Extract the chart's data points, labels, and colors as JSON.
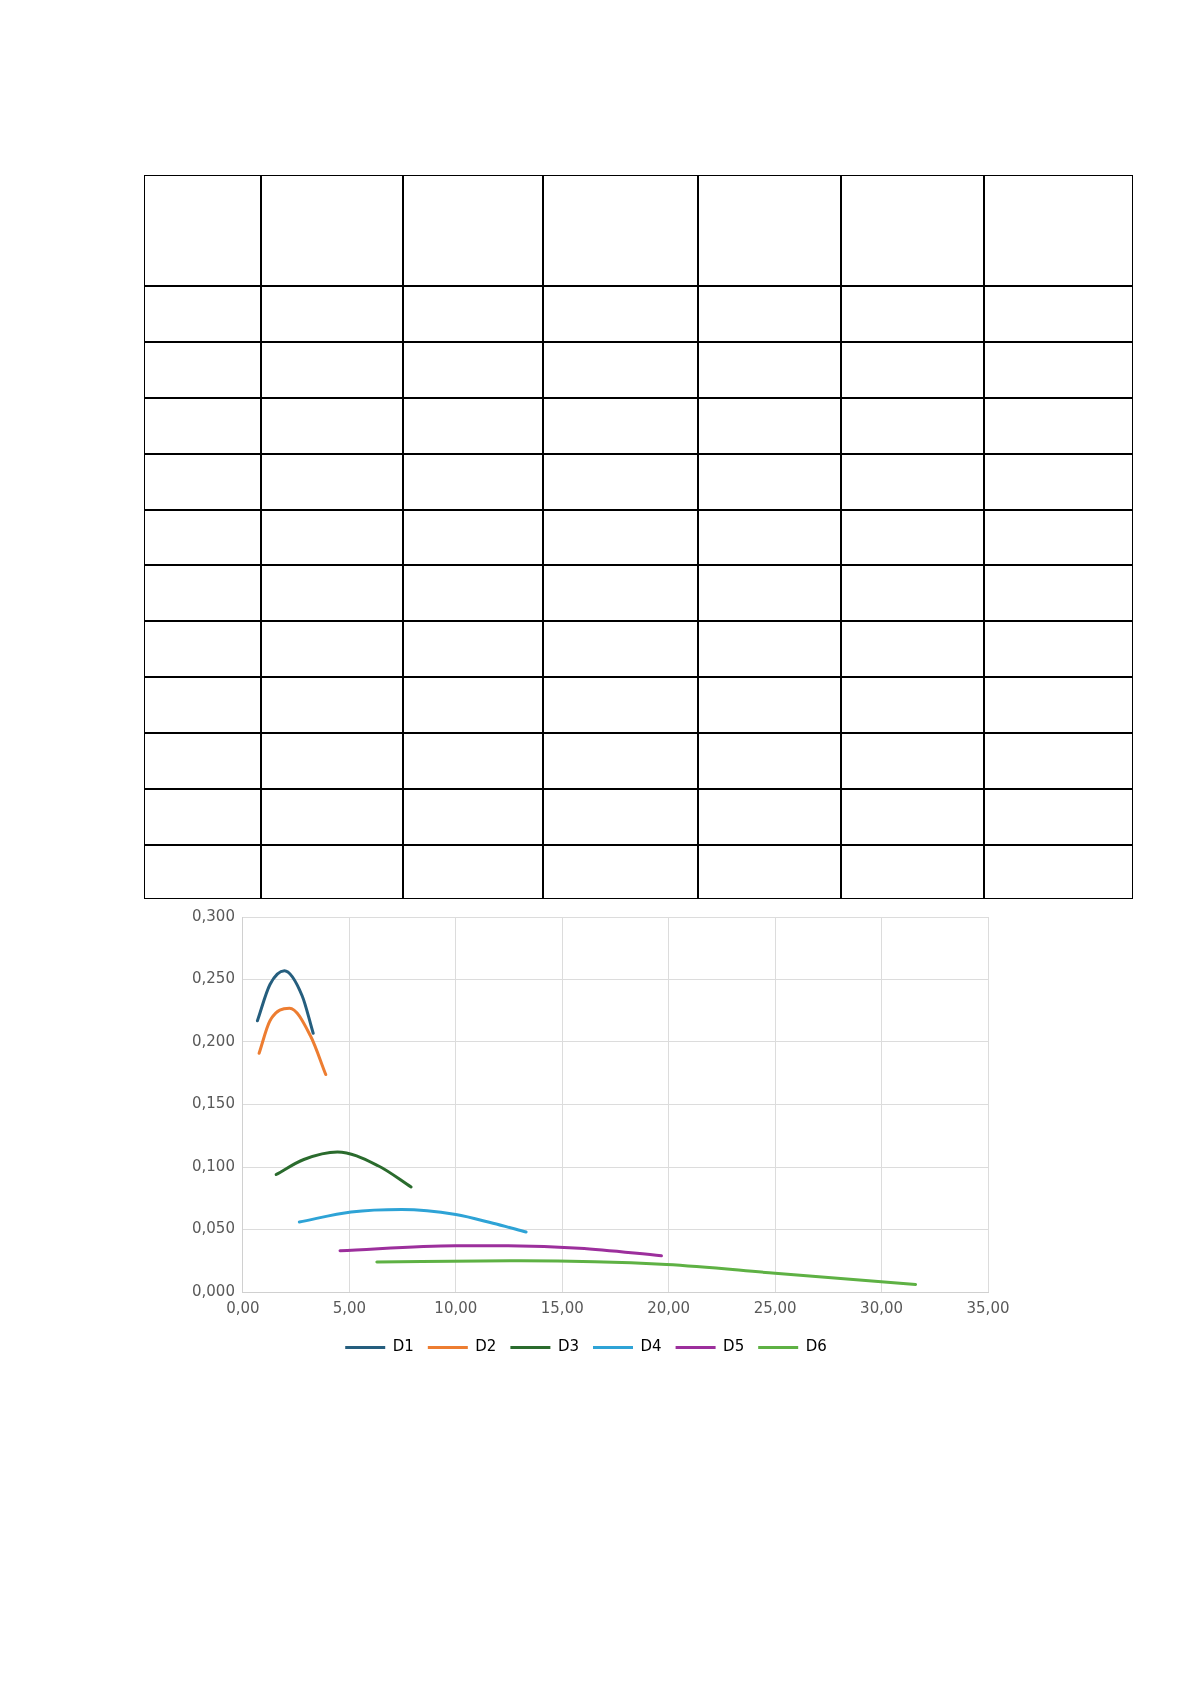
{
  "chart_data": {
    "type": "line",
    "series": [
      {
        "name": "D1",
        "color": "#255e7e",
        "x": [
          0.68,
          1.27,
          1.95,
          2.78,
          3.3
        ],
        "values": [
          0.217,
          0.246,
          0.257,
          0.237,
          0.207
        ]
      },
      {
        "name": "D2",
        "color": "#ed7d31",
        "x": [
          0.76,
          1.27,
          2.19,
          3.17,
          3.89
        ],
        "values": [
          0.191,
          0.217,
          0.227,
          0.205,
          0.174
        ]
      },
      {
        "name": "D3",
        "color": "#2a6b2d",
        "x": [
          1.56,
          2.86,
          4.44,
          6.35,
          7.9
        ],
        "values": [
          0.094,
          0.106,
          0.112,
          0.101,
          0.084
        ]
      },
      {
        "name": "D4",
        "color": "#2ea3d6",
        "x": [
          2.65,
          5.08,
          7.46,
          10.0,
          11.75,
          13.3
        ],
        "values": [
          0.056,
          0.064,
          0.066,
          0.062,
          0.055,
          0.048
        ]
      },
      {
        "name": "D5",
        "color": "#9c2f9c",
        "x": [
          4.56,
          9.98,
          11.8,
          15.8,
          19.66
        ],
        "values": [
          0.033,
          0.037,
          0.037,
          0.035,
          0.029
        ]
      },
      {
        "name": "D6",
        "color": "#5eb144",
        "x": [
          6.29,
          13.04,
          19.9,
          25.0,
          31.6
        ],
        "values": [
          0.024,
          0.025,
          0.022,
          0.015,
          0.006
        ]
      }
    ],
    "xlim": [
      0,
      35
    ],
    "xticks": [
      {
        "value": 0,
        "label": "0,00"
      },
      {
        "value": 5,
        "label": "5,00"
      },
      {
        "value": 10,
        "label": "10,00"
      },
      {
        "value": 15,
        "label": "15,00"
      },
      {
        "value": 20,
        "label": "20,00"
      },
      {
        "value": 25,
        "label": "25,00"
      },
      {
        "value": 30,
        "label": "30,00"
      },
      {
        "value": 35,
        "label": "35,00"
      }
    ],
    "ylim": [
      0,
      0.3
    ],
    "yticks": [
      {
        "value": 0,
        "label": "0,000"
      },
      {
        "value": 0.05,
        "label": "0,050"
      },
      {
        "value": 0.1,
        "label": "0,100"
      },
      {
        "value": 0.15,
        "label": "0,150"
      },
      {
        "value": 0.2,
        "label": "0,200"
      },
      {
        "value": 0.25,
        "label": "0,250"
      },
      {
        "value": 0.3,
        "label": "0,300"
      }
    ],
    "grid": true,
    "legend": "bottom",
    "marker": "none",
    "line_style": "solid"
  }
}
